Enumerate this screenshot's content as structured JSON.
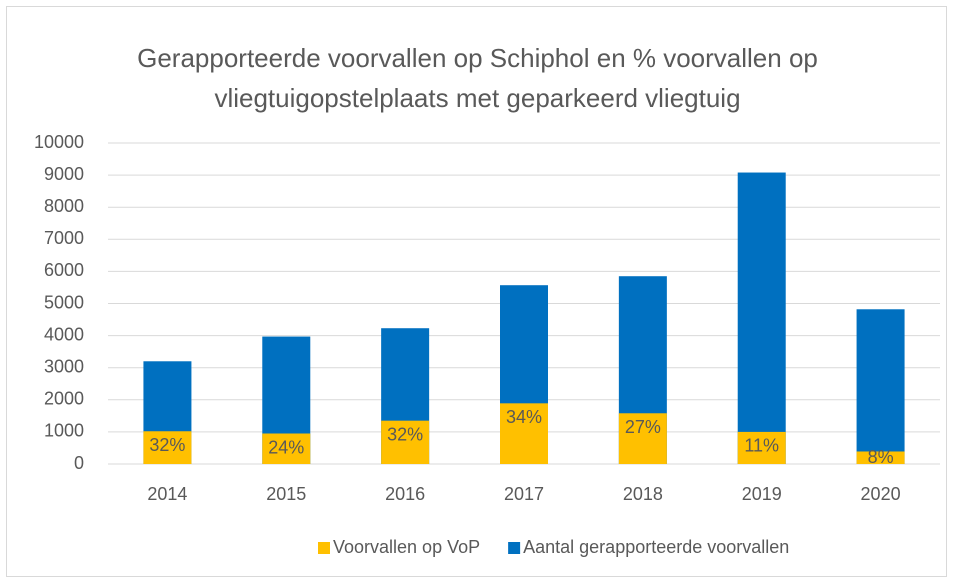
{
  "chart_data": {
    "type": "bar",
    "overlap": true,
    "title": "Gerapporteerde voorvallen op Schiphol en % voorvallen op vliegtuigopstelplaats met geparkeerd vliegtuig",
    "categories": [
      "2014",
      "2015",
      "2016",
      "2017",
      "2018",
      "2019",
      "2020"
    ],
    "series": [
      {
        "name": "Voorvallen op VoP",
        "color": "#FFC000",
        "values": [
          1020,
          950,
          1350,
          1890,
          1580,
          1000,
          390
        ],
        "data_labels": [
          "32%",
          "24%",
          "32%",
          "34%",
          "27%",
          "11%",
          "8%"
        ]
      },
      {
        "name": "Aantal gerapporteerde voorvallen",
        "color": "#0070C0",
        "values": [
          3200,
          3970,
          4230,
          5570,
          5850,
          9080,
          4820
        ]
      }
    ],
    "ylim": [
      0,
      10000
    ],
    "yticks": [
      0,
      1000,
      2000,
      3000,
      4000,
      5000,
      6000,
      7000,
      8000,
      9000,
      10000
    ],
    "grid": true,
    "legend": "bottom"
  }
}
